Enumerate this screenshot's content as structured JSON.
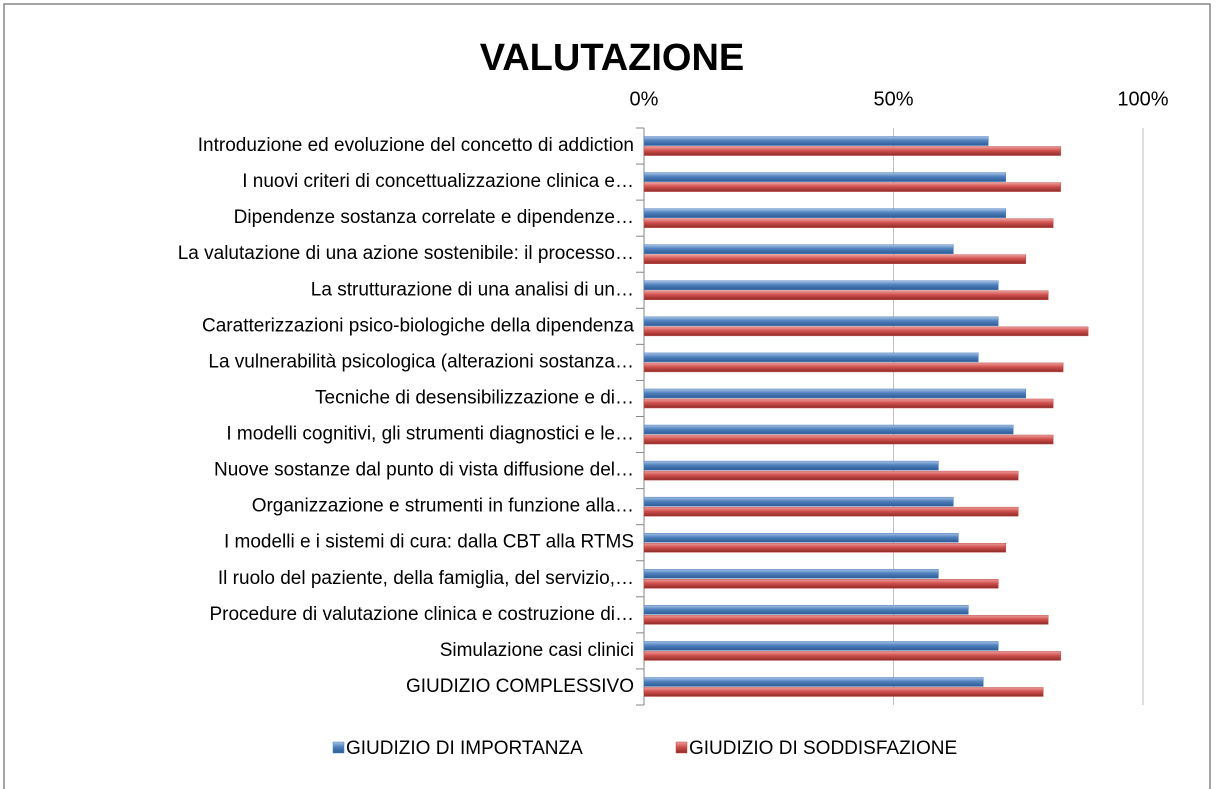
{
  "chart_data": {
    "type": "bar",
    "orientation": "horizontal",
    "title": "VALUTAZIONE",
    "categories": [
      "Introduzione ed evoluzione del concetto di addiction",
      "I nuovi criteri di concettualizzazione clinica e…",
      "Dipendenze sostanza correlate e dipendenze…",
      "La valutazione di una azione sostenibile: il processo…",
      "La strutturazione di una analisi di un…",
      "Caratterizzazioni psico-biologiche della dipendenza",
      "La vulnerabilità psicologica (alterazioni sostanza…",
      "Tecniche di desensibilizzazione e di…",
      "I modelli cognitivi, gli strumenti diagnostici e le…",
      "Nuove sostanze dal punto di vista diffusione del…",
      "Organizzazione e strumenti in funzione alla…",
      "I modelli e i sistemi di cura: dalla CBT alla RTMS",
      "Il ruolo del paziente, della famiglia, del servizio,…",
      "Procedure di valutazione clinica e costruzione di…",
      "Simulazione casi clinici",
      "GIUDIZIO COMPLESSIVO"
    ],
    "series": [
      {
        "name": "GIUDIZIO DI IMPORTANZA",
        "color": "#4f81bd",
        "values": [
          69,
          72.5,
          72.5,
          62,
          71,
          71,
          67,
          76.5,
          74,
          59,
          62,
          63,
          59,
          65,
          71,
          68
        ]
      },
      {
        "name": "GIUDIZIO DI SODDISFAZIONE",
        "color": "#c0504d",
        "values": [
          83.5,
          83.5,
          82,
          76.5,
          81,
          89,
          84,
          82,
          82,
          75,
          75,
          72.5,
          71,
          81,
          83.5,
          80
        ]
      }
    ],
    "xlim": [
      0,
      100
    ],
    "xticks": [
      {
        "value": 0,
        "label": "0%"
      },
      {
        "value": 50,
        "label": "50%"
      },
      {
        "value": 100,
        "label": "100%"
      }
    ],
    "grid": true,
    "legend": "bottom"
  }
}
